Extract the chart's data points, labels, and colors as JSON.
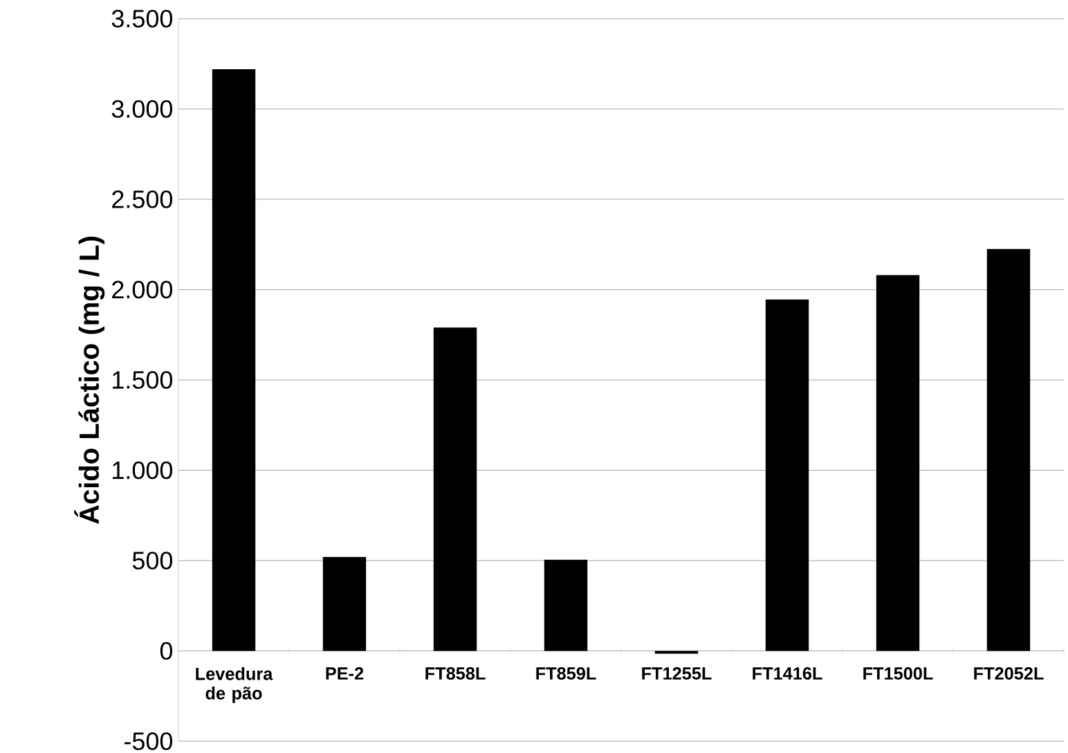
{
  "chart_data": {
    "type": "bar",
    "ylabel": "Ácido Láctico (mg / L)",
    "categories": [
      "Levedura de pão",
      "PE-2",
      "FT858L",
      "FT859L",
      "FT1255L",
      "FT1416L",
      "FT1500L",
      "FT2052L"
    ],
    "values": [
      3220,
      520,
      1790,
      505,
      -15,
      1945,
      2080,
      2225
    ],
    "color": "#000000",
    "ylim": [
      -500,
      3500
    ],
    "yticks": [
      -500,
      0,
      500,
      {
        "value": 1000,
        "label": "1.000"
      },
      {
        "value": 1500,
        "label": "1.500"
      },
      {
        "value": 2000,
        "label": "2.000"
      },
      {
        "value": 2500,
        "label": "2.500"
      },
      {
        "value": 3000,
        "label": "3.000"
      },
      {
        "value": 3500,
        "label": "3.500"
      }
    ],
    "grid": "y"
  }
}
